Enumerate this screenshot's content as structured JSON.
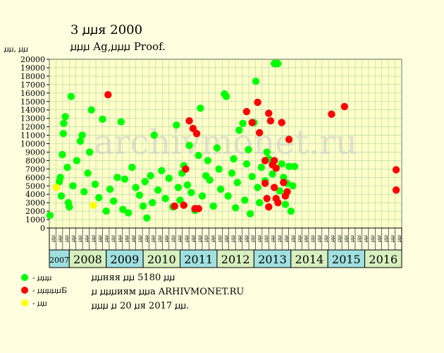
{
  "title": "3 ꙡꙡя 2000",
  "subtitle": "ꙡꙡꙡ Ag,ꙡꙡꙡ Proof.",
  "y_unit": "ꙡꙡ, ꙡꙡ",
  "legend": [
    {
      "label": "- ꙡꙡꙡ",
      "color": "#00FF00"
    },
    {
      "label": "- ꙡꙡꙡꙡꙡБ",
      "color": "#FF0000"
    },
    {
      "label": "- ꙡꙡ",
      "color": "#FFFF00"
    }
  ],
  "notes": [
    "ꙡꙡняя ꙡꙡ 5180 ꙡꙡ",
    "ꙡ ꙡꙡꙡиям ꙡꙡа ARHIVMONET.RU",
    "ꙡꙡꙡ ꙡ 20 ꙡя 2017 ꙡꙡ."
  ],
  "watermark": "archivmonet.ru",
  "chart_data": {
    "type": "scatter",
    "ylim": [
      0,
      20000
    ],
    "y_ticks": [
      0,
      1000,
      2000,
      3000,
      4000,
      5000,
      6000,
      7000,
      8000,
      9000,
      10000,
      11000,
      12000,
      13000,
      14000,
      15000,
      16000,
      17000,
      18000,
      19000,
      20000
    ],
    "x_years": [
      "2007",
      "2008",
      "2009",
      "2010",
      "2011",
      "2012",
      "2013",
      "2014",
      "2015",
      "2016"
    ],
    "x_month_labels": [
      "ꙡꙡ",
      "ꙡꙡ",
      "ꙡꙡ",
      "ꙡꙡ",
      "ꙡꙡ",
      "ꙡꙡ",
      "ꙡꙡ",
      "ꙡꙡ",
      "ꙡꙡ",
      "ꙡꙡ",
      "ꙡꙡ",
      "ꙡꙡ",
      "ꙡꙡ",
      "ꙡꙡ",
      "ꙡꙡ",
      "ꙡꙡ",
      "ꙡꙡ",
      "ꙡꙡ",
      "ꙡꙡ",
      "ꙡꙡ",
      "ꙡꙡ",
      "ꙡꙡ",
      "ꙡꙡ",
      "ꙡꙡ",
      "ꙡꙡ",
      "ꙡꙡ",
      "ꙡꙡ",
      "ꙡꙡ",
      "ꙡꙡ",
      "ꙡꙡ",
      "ꙡꙡ",
      "ꙡꙡ",
      "ꙡꙡ",
      "ꙡꙡ",
      "ꙡꙡ",
      "ꙡꙡ",
      "ꙡꙡ",
      "ꙡꙡ",
      "ꙡꙡ",
      "ꙡꙡ",
      "ꙡꙡ",
      "ꙡꙡ",
      "ꙡꙡ",
      "ꙡꙡ",
      "ꙡꙡ",
      "ꙡꙡ",
      "ꙡꙡ",
      "ꙡꙡ",
      "ꙡꙡ",
      "ꙡꙡ",
      "ꙡꙡ",
      "ꙡꙡ",
      "ꙡꙡ"
    ],
    "grid": true,
    "series": [
      {
        "name": "- ꙡꙡꙡ",
        "color": "#00FF00",
        "points": [
          [
            2007.03,
            1500
          ],
          [
            2007.5,
            5500
          ],
          [
            2007.55,
            6000
          ],
          [
            2007.6,
            3800
          ],
          [
            2007.65,
            8700
          ],
          [
            2007.7,
            11200
          ],
          [
            2007.72,
            12400
          ],
          [
            2007.8,
            13200
          ],
          [
            2007.9,
            7200
          ],
          [
            2007.95,
            3000
          ],
          [
            2008.0,
            2500
          ],
          [
            2008.05,
            15600
          ],
          [
            2008.1,
            5000
          ],
          [
            2008.2,
            8000
          ],
          [
            2008.3,
            10300
          ],
          [
            2008.35,
            11000
          ],
          [
            2008.4,
            4300
          ],
          [
            2008.5,
            6500
          ],
          [
            2008.55,
            9000
          ],
          [
            2008.6,
            14000
          ],
          [
            2008.7,
            5200
          ],
          [
            2008.8,
            3600
          ],
          [
            2008.9,
            12900
          ],
          [
            2009.0,
            2000
          ],
          [
            2009.1,
            4600
          ],
          [
            2009.2,
            3200
          ],
          [
            2009.3,
            6000
          ],
          [
            2009.4,
            12600
          ],
          [
            2009.45,
            2200
          ],
          [
            2009.5,
            5800
          ],
          [
            2009.6,
            1800
          ],
          [
            2009.7,
            7200
          ],
          [
            2009.8,
            4800
          ],
          [
            2009.9,
            3900
          ],
          [
            2010.0,
            2600
          ],
          [
            2010.05,
            5500
          ],
          [
            2010.1,
            1200
          ],
          [
            2010.2,
            6200
          ],
          [
            2010.25,
            3000
          ],
          [
            2010.3,
            11000
          ],
          [
            2010.4,
            4500
          ],
          [
            2010.5,
            6800
          ],
          [
            2010.6,
            3500
          ],
          [
            2010.7,
            5900
          ],
          [
            2010.8,
            2500
          ],
          [
            2010.9,
            12200
          ],
          [
            2010.95,
            4800
          ],
          [
            2011.0,
            3300
          ],
          [
            2011.05,
            6500
          ],
          [
            2011.1,
            7400
          ],
          [
            2011.2,
            5100
          ],
          [
            2011.25,
            9800
          ],
          [
            2011.3,
            4200
          ],
          [
            2011.4,
            2100
          ],
          [
            2011.5,
            8600
          ],
          [
            2011.55,
            14200
          ],
          [
            2011.6,
            3800
          ],
          [
            2011.7,
            6200
          ],
          [
            2011.75,
            8000
          ],
          [
            2011.8,
            5700
          ],
          [
            2011.9,
            2600
          ],
          [
            2012.0,
            9500
          ],
          [
            2012.05,
            7000
          ],
          [
            2012.1,
            4600
          ],
          [
            2012.2,
            15900
          ],
          [
            2012.25,
            15600
          ],
          [
            2012.3,
            3800
          ],
          [
            2012.4,
            6500
          ],
          [
            2012.45,
            8200
          ],
          [
            2012.5,
            2400
          ],
          [
            2012.55,
            5400
          ],
          [
            2012.6,
            11600
          ],
          [
            2012.7,
            12400
          ],
          [
            2012.75,
            3300
          ],
          [
            2012.8,
            7600
          ],
          [
            2012.85,
            9300
          ],
          [
            2012.9,
            1700
          ],
          [
            2012.95,
            6100
          ],
          [
            2013.0,
            12500
          ],
          [
            2013.05,
            17400
          ],
          [
            2013.1,
            4800
          ],
          [
            2013.15,
            3000
          ],
          [
            2013.2,
            7200
          ],
          [
            2013.3,
            5600
          ],
          [
            2013.35,
            9000
          ],
          [
            2013.4,
            8200
          ],
          [
            2013.5,
            6400
          ],
          [
            2013.55,
            19500
          ],
          [
            2013.6,
            19500
          ],
          [
            2013.65,
            19500
          ],
          [
            2013.7,
            4400
          ],
          [
            2013.75,
            7600
          ],
          [
            2013.8,
            6000
          ],
          [
            2013.85,
            2800
          ],
          [
            2013.9,
            5300
          ],
          [
            2013.95,
            7300
          ],
          [
            2014.0,
            2000
          ],
          [
            2014.05,
            5000
          ],
          [
            2014.1,
            7300
          ]
        ]
      },
      {
        "name": "- ꙡꙡꙡꙡꙡБ",
        "color": "#FF0000",
        "points": [
          [
            2009.05,
            15800
          ],
          [
            2010.85,
            2600
          ],
          [
            2011.1,
            2700
          ],
          [
            2011.15,
            7000
          ],
          [
            2011.25,
            12700
          ],
          [
            2011.35,
            11800
          ],
          [
            2011.45,
            11200
          ],
          [
            2011.4,
            2300
          ],
          [
            2011.5,
            2300
          ],
          [
            2012.8,
            13800
          ],
          [
            2012.95,
            12500
          ],
          [
            2013.1,
            14900
          ],
          [
            2013.15,
            11300
          ],
          [
            2013.3,
            8000
          ],
          [
            2013.3,
            5300
          ],
          [
            2013.35,
            3500
          ],
          [
            2013.4,
            13600
          ],
          [
            2013.45,
            12700
          ],
          [
            2013.4,
            2500
          ],
          [
            2013.5,
            7500
          ],
          [
            2013.55,
            8000
          ],
          [
            2013.6,
            7100
          ],
          [
            2013.55,
            4800
          ],
          [
            2013.6,
            3500
          ],
          [
            2013.65,
            3000
          ],
          [
            2013.75,
            12500
          ],
          [
            2013.8,
            5400
          ],
          [
            2013.85,
            3800
          ],
          [
            2013.9,
            4300
          ],
          [
            2013.95,
            10500
          ],
          [
            2015.1,
            13500
          ],
          [
            2015.45,
            14400
          ],
          [
            2016.85,
            6900
          ],
          [
            2016.85,
            4500
          ]
        ]
      },
      {
        "name": "- ꙡꙡ",
        "color": "#FFFF00",
        "points": [
          [
            2007.35,
            4800
          ],
          [
            2008.65,
            2700
          ]
        ]
      }
    ]
  }
}
